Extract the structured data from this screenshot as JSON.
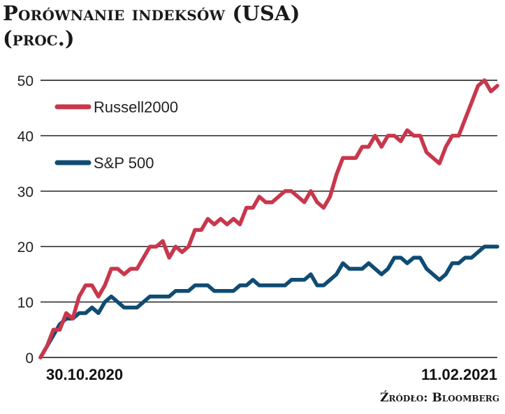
{
  "header": {
    "title": "Porównanie indeksów (USA)",
    "subtitle": "(proc.)"
  },
  "source": "Źródło: Bloomberg",
  "colors": {
    "russell": "#c8374c",
    "sp500": "#0f4c73",
    "grid": "#111111"
  },
  "chart_data": {
    "type": "line",
    "title": "Porównanie indeksów (USA)",
    "subtitle": "(proc.)",
    "xlabel": "",
    "ylabel": "",
    "ylim": [
      0,
      50
    ],
    "yticks": [
      "0",
      "10",
      "20",
      "30",
      "40",
      "50"
    ],
    "xtick_labels": [
      "30.10.2020",
      "11.02.2021"
    ],
    "grid": true,
    "legend": "top-left",
    "series": [
      {
        "name": "Russell2000",
        "values": [
          0,
          2,
          5,
          5,
          8,
          7,
          11,
          13,
          13,
          11,
          13,
          16,
          16,
          15,
          16,
          16,
          18,
          20,
          20,
          21,
          18,
          20,
          19,
          20,
          23,
          23,
          25,
          24,
          25,
          24,
          25,
          24,
          27,
          27,
          29,
          28,
          28,
          29,
          30,
          30,
          29,
          28,
          30,
          28,
          27,
          29,
          33,
          36,
          36,
          36,
          38,
          38,
          40,
          38,
          40,
          40,
          39,
          41,
          40,
          40,
          37,
          36,
          35,
          38,
          40,
          40,
          43,
          46,
          49,
          50,
          48,
          49
        ]
      },
      {
        "name": "S&P 500",
        "values": [
          0,
          2,
          4,
          6,
          7,
          7,
          8,
          8,
          9,
          8,
          10,
          11,
          10,
          9,
          9,
          9,
          10,
          11,
          11,
          11,
          11,
          12,
          12,
          12,
          13,
          13,
          13,
          12,
          12,
          12,
          12,
          13,
          13,
          14,
          13,
          13,
          13,
          13,
          13,
          14,
          14,
          14,
          15,
          13,
          13,
          14,
          15,
          17,
          16,
          16,
          16,
          17,
          16,
          15,
          16,
          18,
          18,
          17,
          18,
          18,
          16,
          15,
          14,
          15,
          17,
          17,
          18,
          18,
          19,
          20,
          20,
          20
        ]
      }
    ]
  }
}
